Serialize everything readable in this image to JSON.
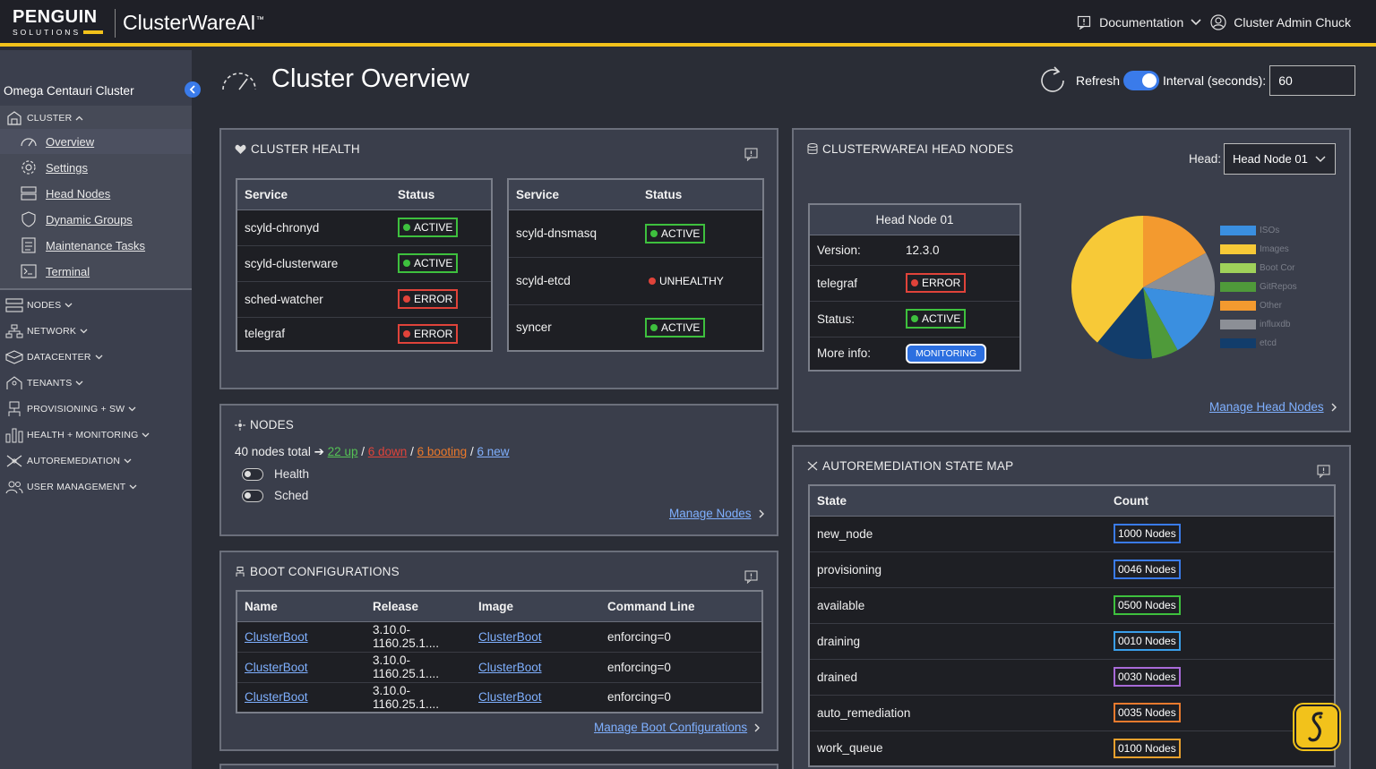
{
  "header": {
    "logo_main": "PENGUIN",
    "logo_sub": "SOLUTIONS",
    "app_name": "ClusterWareAI",
    "app_tm": "™",
    "documentation": "Documentation",
    "user": "Cluster Admin Chuck"
  },
  "sidebar": {
    "cluster_name": "Omega Centauri Cluster",
    "cluster_section": "CLUSTER",
    "cluster_items": [
      "Overview",
      "Settings",
      "Head Nodes",
      "Dynamic Groups",
      "Maintenance Tasks",
      "Terminal"
    ],
    "sections": [
      "NODES",
      "NETWORK",
      "DATACENTER",
      "TENANTS",
      "PROVISIONING + SW",
      "HEALTH + MONITORING",
      "AUTOREMEDIATION",
      "USER MANAGEMENT"
    ]
  },
  "page": {
    "title": "Cluster Overview",
    "refresh_label": "Refresh",
    "interval_label": "Interval (seconds):",
    "interval_value": "60"
  },
  "cluster_health": {
    "title": "CLUSTER HEALTH",
    "col_service": "Service",
    "col_status": "Status",
    "left": [
      {
        "service": "scyld-chronyd",
        "status": "ACTIVE"
      },
      {
        "service": "scyld-clusterware",
        "status": "ACTIVE"
      },
      {
        "service": "sched-watcher",
        "status": "ERROR"
      },
      {
        "service": "telegraf",
        "status": "ERROR"
      }
    ],
    "right": [
      {
        "service": "scyld-dnsmasq",
        "status": "ACTIVE"
      },
      {
        "service": "scyld-etcd",
        "status": "UNHEALTHY"
      },
      {
        "service": "syncer",
        "status": "ACTIVE"
      }
    ]
  },
  "nodes": {
    "title": "NODES",
    "total": "40 nodes total",
    "arrow": "➔",
    "up": "22 up",
    "down": "6 down",
    "booting": "6 booting",
    "new": "6 new",
    "sep": "/",
    "toggle_health": "Health",
    "toggle_sched": "Sched",
    "manage": "Manage Nodes"
  },
  "boot": {
    "title": "BOOT CONFIGURATIONS",
    "cols": [
      "Name",
      "Release",
      "Image",
      "Command Line"
    ],
    "rows": [
      {
        "name": "ClusterBoot",
        "release": "3.10.0-1160.25.1....",
        "image": "ClusterBoot",
        "cmd": "enforcing=0"
      },
      {
        "name": "ClusterBoot",
        "release": "3.10.0-1160.25.1....",
        "image": "ClusterBoot",
        "cmd": "enforcing=0"
      },
      {
        "name": "ClusterBoot",
        "release": "3.10.0-1160.25.1....",
        "image": "ClusterBoot",
        "cmd": "enforcing=0"
      }
    ],
    "manage": "Manage Boot Configurations"
  },
  "head_nodes": {
    "title": "CLUSTERWAREAI HEAD NODES",
    "head_label": "Head:",
    "selected": "Head Node 01",
    "card_title": "Head Node 01",
    "version_label": "Version:",
    "version": "12.3.0",
    "telegraf_label": "telegraf",
    "telegraf_status": "ERROR",
    "status_label": "Status:",
    "status": "ACTIVE",
    "more_label": "More info:",
    "more_button": "MONITORING",
    "manage": "Manage Head Nodes"
  },
  "chart_data": {
    "type": "pie",
    "categories": [
      "ISOs",
      "Images",
      "Boot Cor",
      "GitRepos",
      "Other",
      "influxdb",
      "etcd"
    ],
    "values": [
      15,
      39,
      0,
      6,
      17,
      10,
      13
    ],
    "colors": [
      "#3a8fe0",
      "#f7c937",
      "#9fd15a",
      "#4f9a3a",
      "#f39a2f",
      "#8c8f96",
      "#123d6b"
    ],
    "legend_position": "right"
  },
  "autoremediation": {
    "title": "AUTOREMEDIATION STATE MAP",
    "col_state": "State",
    "col_count": "Count",
    "rows": [
      {
        "state": "new_node",
        "count": "1000 Nodes",
        "color": "#3a7bea"
      },
      {
        "state": "provisioning",
        "count": "0046 Nodes",
        "color": "#3a7bea"
      },
      {
        "state": "available",
        "count": "0500 Nodes",
        "color": "#3ec03e"
      },
      {
        "state": "draining",
        "count": "0010 Nodes",
        "color": "#3a9fea"
      },
      {
        "state": "drained",
        "count": "0030 Nodes",
        "color": "#a86ad8"
      },
      {
        "state": "auto_remediation",
        "count": "0035 Nodes",
        "color": "#e87a2e"
      },
      {
        "state": "work_queue",
        "count": "0100 Nodes",
        "color": "#e8a02e"
      }
    ]
  }
}
